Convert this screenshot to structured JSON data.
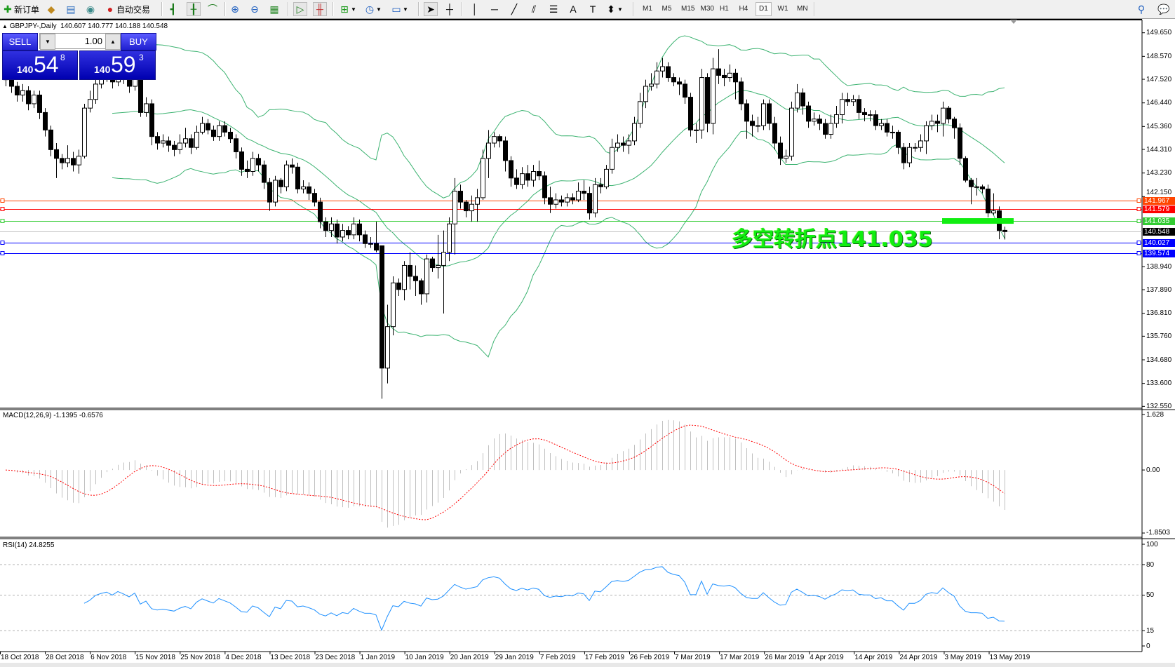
{
  "toolbar": {
    "new_order_label": "新订单",
    "auto_trading_label": "自动交易",
    "icons": [
      "new-order-icon",
      "market-watch-icon",
      "navigator-icon",
      "signals-icon",
      "auto-trading-icon",
      "bar-chart-icon",
      "candle-chart-icon",
      "line-chart-icon",
      "zoom-in-icon",
      "zoom-out-icon",
      "tile-windows-icon",
      "auto-scroll-icon",
      "chart-shift-icon",
      "indicators-icon",
      "periods-icon",
      "templates-icon",
      "cursor-icon",
      "crosshair-icon",
      "vertical-line-icon",
      "horizontal-line-icon",
      "trendline-icon",
      "equidistant-channel-icon",
      "fibonacci-icon",
      "text-icon",
      "text-label-icon",
      "arrows-icon",
      "search-icon",
      "chat-icon"
    ],
    "timeframes": [
      "M1",
      "M5",
      "M15",
      "M30",
      "H1",
      "H4",
      "D1",
      "W1",
      "MN"
    ],
    "active_timeframe": "D1"
  },
  "chart": {
    "symbol": "GBPJPY-,Daily",
    "ohlc_text": "140.607 140.777 140.188 140.548",
    "annotation": "多空转折点141.035",
    "annotation_color": "#11ee11"
  },
  "trade_panel": {
    "sell_label": "SELL",
    "buy_label": "BUY",
    "lot": "1.00",
    "sell_price": {
      "prefix": "140",
      "big": "54",
      "sup": "8"
    },
    "buy_price": {
      "prefix": "140",
      "big": "59",
      "sup": "3"
    }
  },
  "price_axis": [
    "149.650",
    "148.570",
    "147.520",
    "146.440",
    "145.360",
    "144.310",
    "143.230",
    "142.150",
    "138.940",
    "137.890",
    "136.810",
    "135.760",
    "134.680",
    "133.600",
    "132.550"
  ],
  "level_lines": [
    {
      "price": "141.967",
      "color": "#ff4500"
    },
    {
      "price": "141.579",
      "color": "#ff0000"
    },
    {
      "price": "141.035",
      "color": "#33cc33"
    },
    {
      "price": "140.548",
      "color": "#000000",
      "line_color": "#c0c0c0"
    },
    {
      "price": "140.027",
      "color": "#0000ff"
    },
    {
      "price": "139.574",
      "color": "#0000ff"
    }
  ],
  "macd": {
    "label": "MACD(12,26,9) -1.1395 -0.6576",
    "axis": [
      "1.628",
      "0.00",
      "-1.8503"
    ],
    "max": 1.628,
    "min": -1.8503,
    "hist_color": "#c0c0c0",
    "signal_color": "#ff0000"
  },
  "rsi": {
    "label": "RSI(14) 24.8255",
    "axis": [
      "100",
      "80",
      "50",
      "15",
      "0"
    ],
    "levels": [
      80,
      50,
      15
    ],
    "color": "#1e90ff"
  },
  "date_axis": [
    "18 Oct 2018",
    "28 Oct 2018",
    "6 Nov 2018",
    "15 Nov 2018",
    "25 Nov 2018",
    "4 Dec 2018",
    "13 Dec 2018",
    "23 Dec 2018",
    "1 Jan 2019",
    "10 Jan 2019",
    "20 Jan 2019",
    "29 Jan 2019",
    "7 Feb 2019",
    "17 Feb 2019",
    "26 Feb 2019",
    "7 Mar 2019",
    "17 Mar 2019",
    "26 Mar 2019",
    "4 Apr 2019",
    "14 Apr 2019",
    "24 Apr 2019",
    "3 May 2019",
    "13 May 2019"
  ],
  "chart_data": {
    "type": "candlestick",
    "title": "GBPJPY-,Daily",
    "ylim": [
      132.55,
      149.65
    ],
    "grid": false,
    "indicators": [
      "Bollinger Bands",
      "MACD(12,26,9)",
      "RSI(14)"
    ],
    "band_color": "#3cb371",
    "candles": [
      [
        147.8,
        148.0,
        147.2,
        147.5
      ],
      [
        147.5,
        147.7,
        146.9,
        147.2
      ],
      [
        147.2,
        147.4,
        146.5,
        146.8
      ],
      [
        146.8,
        147.3,
        146.5,
        147.0
      ],
      [
        147.0,
        147.2,
        146.1,
        146.4
      ],
      [
        146.4,
        147.0,
        146.2,
        146.8
      ],
      [
        146.8,
        147.0,
        145.7,
        146.0
      ],
      [
        146.0,
        146.2,
        144.9,
        145.2
      ],
      [
        145.2,
        145.4,
        144.0,
        144.3
      ],
      [
        144.3,
        144.6,
        143.0,
        143.9
      ],
      [
        143.9,
        144.1,
        143.4,
        143.7
      ],
      [
        143.7,
        144.5,
        143.5,
        143.9
      ],
      [
        143.9,
        144.2,
        143.3,
        143.6
      ],
      [
        143.6,
        144.3,
        143.2,
        144.0
      ],
      [
        144.0,
        146.4,
        143.9,
        146.2
      ],
      [
        146.2,
        147.0,
        146.0,
        146.6
      ],
      [
        146.6,
        147.6,
        146.4,
        147.3
      ],
      [
        147.3,
        147.9,
        147.1,
        147.6
      ],
      [
        147.6,
        148.2,
        147.4,
        147.8
      ],
      [
        147.8,
        148.0,
        147.1,
        147.4
      ],
      [
        147.4,
        148.3,
        147.2,
        147.9
      ],
      [
        147.9,
        148.1,
        147.3,
        147.6
      ],
      [
        147.6,
        147.8,
        146.9,
        147.2
      ],
      [
        147.2,
        148.0,
        147.0,
        147.7
      ],
      [
        147.7,
        147.9,
        145.8,
        146.0
      ],
      [
        146.0,
        146.7,
        145.8,
        146.4
      ],
      [
        146.4,
        146.6,
        144.5,
        144.9
      ],
      [
        144.9,
        145.1,
        144.3,
        144.6
      ],
      [
        144.6,
        145.0,
        144.4,
        144.7
      ],
      [
        144.7,
        144.9,
        144.2,
        144.5
      ],
      [
        144.5,
        144.7,
        144.0,
        144.3
      ],
      [
        144.3,
        145.0,
        144.1,
        144.6
      ],
      [
        144.6,
        145.3,
        144.4,
        144.8
      ],
      [
        144.8,
        145.0,
        144.1,
        144.4
      ],
      [
        144.4,
        145.4,
        144.3,
        145.1
      ],
      [
        145.1,
        145.8,
        145.0,
        145.5
      ],
      [
        145.5,
        145.7,
        145.0,
        145.2
      ],
      [
        145.2,
        145.4,
        144.7,
        144.9
      ],
      [
        144.9,
        145.6,
        144.7,
        145.4
      ],
      [
        145.4,
        145.6,
        144.9,
        145.1
      ],
      [
        145.1,
        145.3,
        144.6,
        144.8
      ],
      [
        144.8,
        145.0,
        143.9,
        144.2
      ],
      [
        144.2,
        144.4,
        143.1,
        143.4
      ],
      [
        143.4,
        143.8,
        143.0,
        143.3
      ],
      [
        143.3,
        144.2,
        143.1,
        143.9
      ],
      [
        143.9,
        144.1,
        143.3,
        143.6
      ],
      [
        143.6,
        143.8,
        142.5,
        142.8
      ],
      [
        142.8,
        143.0,
        141.5,
        141.9
      ],
      [
        141.9,
        143.1,
        141.7,
        142.9
      ],
      [
        142.9,
        143.0,
        142.3,
        142.6
      ],
      [
        142.6,
        143.8,
        142.4,
        143.6
      ],
      [
        143.6,
        143.9,
        143.2,
        143.5
      ],
      [
        143.5,
        143.7,
        142.3,
        142.5
      ],
      [
        142.5,
        142.9,
        142.3,
        142.6
      ],
      [
        142.6,
        142.8,
        142.0,
        142.3
      ],
      [
        142.3,
        142.5,
        141.7,
        141.9
      ],
      [
        141.9,
        142.1,
        140.7,
        141.0
      ],
      [
        141.0,
        141.2,
        140.3,
        140.6
      ],
      [
        140.6,
        141.2,
        140.3,
        140.9
      ],
      [
        140.9,
        141.1,
        140.0,
        140.3
      ],
      [
        140.3,
        140.9,
        140.1,
        140.6
      ],
      [
        140.6,
        140.8,
        140.2,
        140.4
      ],
      [
        140.4,
        141.2,
        140.2,
        140.9
      ],
      [
        140.9,
        141.1,
        140.1,
        140.4
      ],
      [
        140.4,
        140.6,
        139.8,
        140.0
      ],
      [
        140.0,
        140.3,
        139.8,
        140.0
      ],
      [
        140.0,
        141.0,
        139.6,
        139.7
      ],
      [
        139.9,
        139.9,
        132.9,
        134.3
      ],
      [
        134.3,
        137.2,
        133.6,
        136.2
      ],
      [
        136.2,
        138.5,
        135.8,
        138.2
      ],
      [
        138.2,
        138.4,
        137.6,
        137.9
      ],
      [
        137.9,
        139.2,
        137.4,
        139.0
      ],
      [
        139.0,
        139.6,
        137.9,
        138.5
      ],
      [
        138.5,
        139.0,
        137.6,
        138.3
      ],
      [
        138.3,
        138.4,
        137.2,
        137.7
      ],
      [
        137.7,
        139.5,
        137.3,
        139.3
      ],
      [
        139.3,
        139.4,
        138.7,
        138.9
      ],
      [
        138.9,
        140.4,
        138.4,
        139.0
      ],
      [
        139.0,
        140.6,
        136.8,
        139.6
      ],
      [
        139.6,
        141.2,
        139.2,
        140.9
      ],
      [
        140.9,
        143.0,
        139.5,
        142.4
      ],
      [
        142.4,
        142.7,
        141.6,
        141.9
      ],
      [
        141.9,
        142.0,
        141.2,
        141.5
      ],
      [
        141.5,
        142.2,
        141.0,
        141.8
      ],
      [
        141.8,
        142.5,
        141.0,
        142.1
      ],
      [
        142.1,
        144.3,
        142.0,
        143.9
      ],
      [
        143.9,
        145.2,
        143.0,
        144.6
      ],
      [
        144.6,
        145.1,
        144.4,
        144.9
      ],
      [
        144.9,
        145.0,
        144.4,
        144.7
      ],
      [
        144.7,
        144.9,
        143.3,
        143.8
      ],
      [
        143.8,
        144.0,
        142.6,
        143.0
      ],
      [
        143.0,
        143.4,
        142.5,
        142.7
      ],
      [
        142.7,
        143.5,
        142.5,
        143.2
      ],
      [
        143.2,
        143.6,
        142.6,
        142.9
      ],
      [
        142.9,
        143.6,
        142.6,
        143.3
      ],
      [
        143.3,
        143.8,
        142.9,
        143.1
      ],
      [
        143.1,
        143.3,
        141.8,
        142.1
      ],
      [
        142.1,
        142.6,
        141.4,
        141.8
      ],
      [
        141.8,
        142.3,
        141.6,
        142.0
      ],
      [
        142.0,
        142.2,
        141.7,
        141.9
      ],
      [
        141.9,
        142.3,
        141.7,
        142.1
      ],
      [
        142.1,
        142.3,
        141.8,
        142.0
      ],
      [
        142.0,
        142.8,
        141.9,
        142.4
      ],
      [
        142.4,
        142.9,
        142.0,
        142.3
      ],
      [
        142.3,
        142.6,
        141.1,
        141.4
      ],
      [
        141.4,
        143.0,
        141.2,
        142.7
      ],
      [
        142.7,
        143.0,
        142.3,
        142.6
      ],
      [
        142.6,
        143.6,
        142.5,
        143.4
      ],
      [
        143.4,
        144.8,
        143.2,
        144.4
      ],
      [
        144.4,
        145.0,
        144.2,
        144.6
      ],
      [
        144.6,
        144.9,
        144.2,
        144.5
      ],
      [
        144.5,
        145.0,
        144.1,
        144.7
      ],
      [
        144.7,
        145.8,
        144.5,
        145.5
      ],
      [
        145.5,
        146.9,
        145.3,
        146.5
      ],
      [
        146.5,
        147.5,
        146.2,
        147.2
      ],
      [
        147.2,
        147.8,
        147.0,
        147.3
      ],
      [
        147.3,
        148.3,
        147.1,
        147.9
      ],
      [
        147.9,
        148.5,
        147.6,
        148.1
      ],
      [
        148.1,
        148.3,
        147.4,
        147.6
      ],
      [
        147.6,
        147.8,
        147.2,
        147.4
      ],
      [
        147.4,
        147.6,
        146.8,
        147.3
      ],
      [
        147.3,
        147.5,
        146.4,
        146.7
      ],
      [
        146.7,
        146.9,
        144.9,
        145.2
      ],
      [
        145.2,
        145.5,
        144.6,
        145.2
      ],
      [
        145.2,
        148.0,
        144.8,
        147.6
      ],
      [
        147.6,
        147.8,
        145.1,
        145.5
      ],
      [
        145.5,
        148.5,
        145.0,
        148.0
      ],
      [
        148.0,
        148.9,
        147.3,
        147.7
      ],
      [
        147.7,
        148.0,
        147.2,
        147.6
      ],
      [
        147.6,
        148.2,
        147.4,
        147.8
      ],
      [
        147.8,
        148.0,
        146.6,
        147.4
      ],
      [
        147.4,
        147.6,
        146.1,
        146.4
      ],
      [
        146.4,
        146.6,
        144.8,
        145.6
      ],
      [
        145.6,
        145.9,
        144.9,
        145.4
      ],
      [
        145.4,
        145.8,
        145.1,
        145.4
      ],
      [
        145.4,
        146.6,
        145.2,
        146.4
      ],
      [
        146.4,
        146.6,
        145.2,
        145.5
      ],
      [
        145.5,
        145.8,
        144.3,
        144.6
      ],
      [
        144.6,
        144.9,
        143.6,
        143.9
      ],
      [
        143.9,
        144.3,
        143.7,
        144.0
      ],
      [
        144.0,
        146.5,
        143.8,
        146.2
      ],
      [
        146.2,
        147.3,
        146.0,
        146.9
      ],
      [
        146.9,
        147.1,
        145.9,
        146.3
      ],
      [
        146.3,
        146.5,
        145.3,
        145.6
      ],
      [
        145.6,
        146.0,
        145.4,
        145.7
      ],
      [
        145.7,
        145.9,
        145.2,
        145.5
      ],
      [
        145.5,
        145.7,
        144.8,
        145.0
      ],
      [
        145.0,
        145.9,
        144.8,
        145.5
      ],
      [
        145.5,
        146.3,
        145.3,
        145.9
      ],
      [
        145.9,
        146.9,
        145.5,
        146.6
      ],
      [
        146.6,
        146.9,
        146.3,
        146.5
      ],
      [
        146.5,
        146.8,
        146.3,
        146.6
      ],
      [
        146.6,
        146.8,
        145.7,
        146.0
      ],
      [
        146.0,
        146.2,
        145.6,
        145.9
      ],
      [
        145.9,
        146.1,
        145.6,
        145.9
      ],
      [
        145.9,
        146.1,
        145.2,
        145.4
      ],
      [
        145.4,
        145.7,
        145.2,
        145.5
      ],
      [
        145.5,
        145.7,
        144.9,
        145.1
      ],
      [
        145.1,
        145.4,
        144.8,
        145.1
      ],
      [
        145.1,
        145.2,
        144.1,
        144.4
      ],
      [
        144.4,
        144.6,
        143.4,
        143.7
      ],
      [
        143.7,
        144.6,
        143.5,
        144.4
      ],
      [
        144.4,
        144.6,
        144.2,
        144.4
      ],
      [
        144.4,
        145.0,
        144.2,
        144.7
      ],
      [
        144.7,
        145.6,
        144.1,
        145.4
      ],
      [
        145.4,
        145.9,
        145.2,
        145.6
      ],
      [
        145.6,
        145.9,
        145.1,
        145.5
      ],
      [
        145.5,
        146.5,
        144.9,
        146.2
      ],
      [
        146.2,
        146.3,
        145.5,
        145.7
      ],
      [
        145.7,
        145.8,
        144.8,
        145.3
      ],
      [
        145.3,
        145.5,
        143.6,
        143.9
      ],
      [
        143.9,
        144.0,
        142.8,
        142.9
      ],
      [
        142.9,
        143.0,
        141.8,
        142.6
      ],
      [
        142.6,
        143.0,
        142.2,
        142.6
      ],
      [
        142.6,
        142.7,
        142.3,
        142.5
      ],
      [
        142.5,
        142.7,
        141.2,
        141.4
      ],
      [
        141.4,
        142.3,
        141.3,
        141.5
      ],
      [
        141.5,
        141.7,
        140.2,
        140.6
      ],
      [
        140.607,
        140.777,
        140.188,
        140.548
      ]
    ]
  }
}
